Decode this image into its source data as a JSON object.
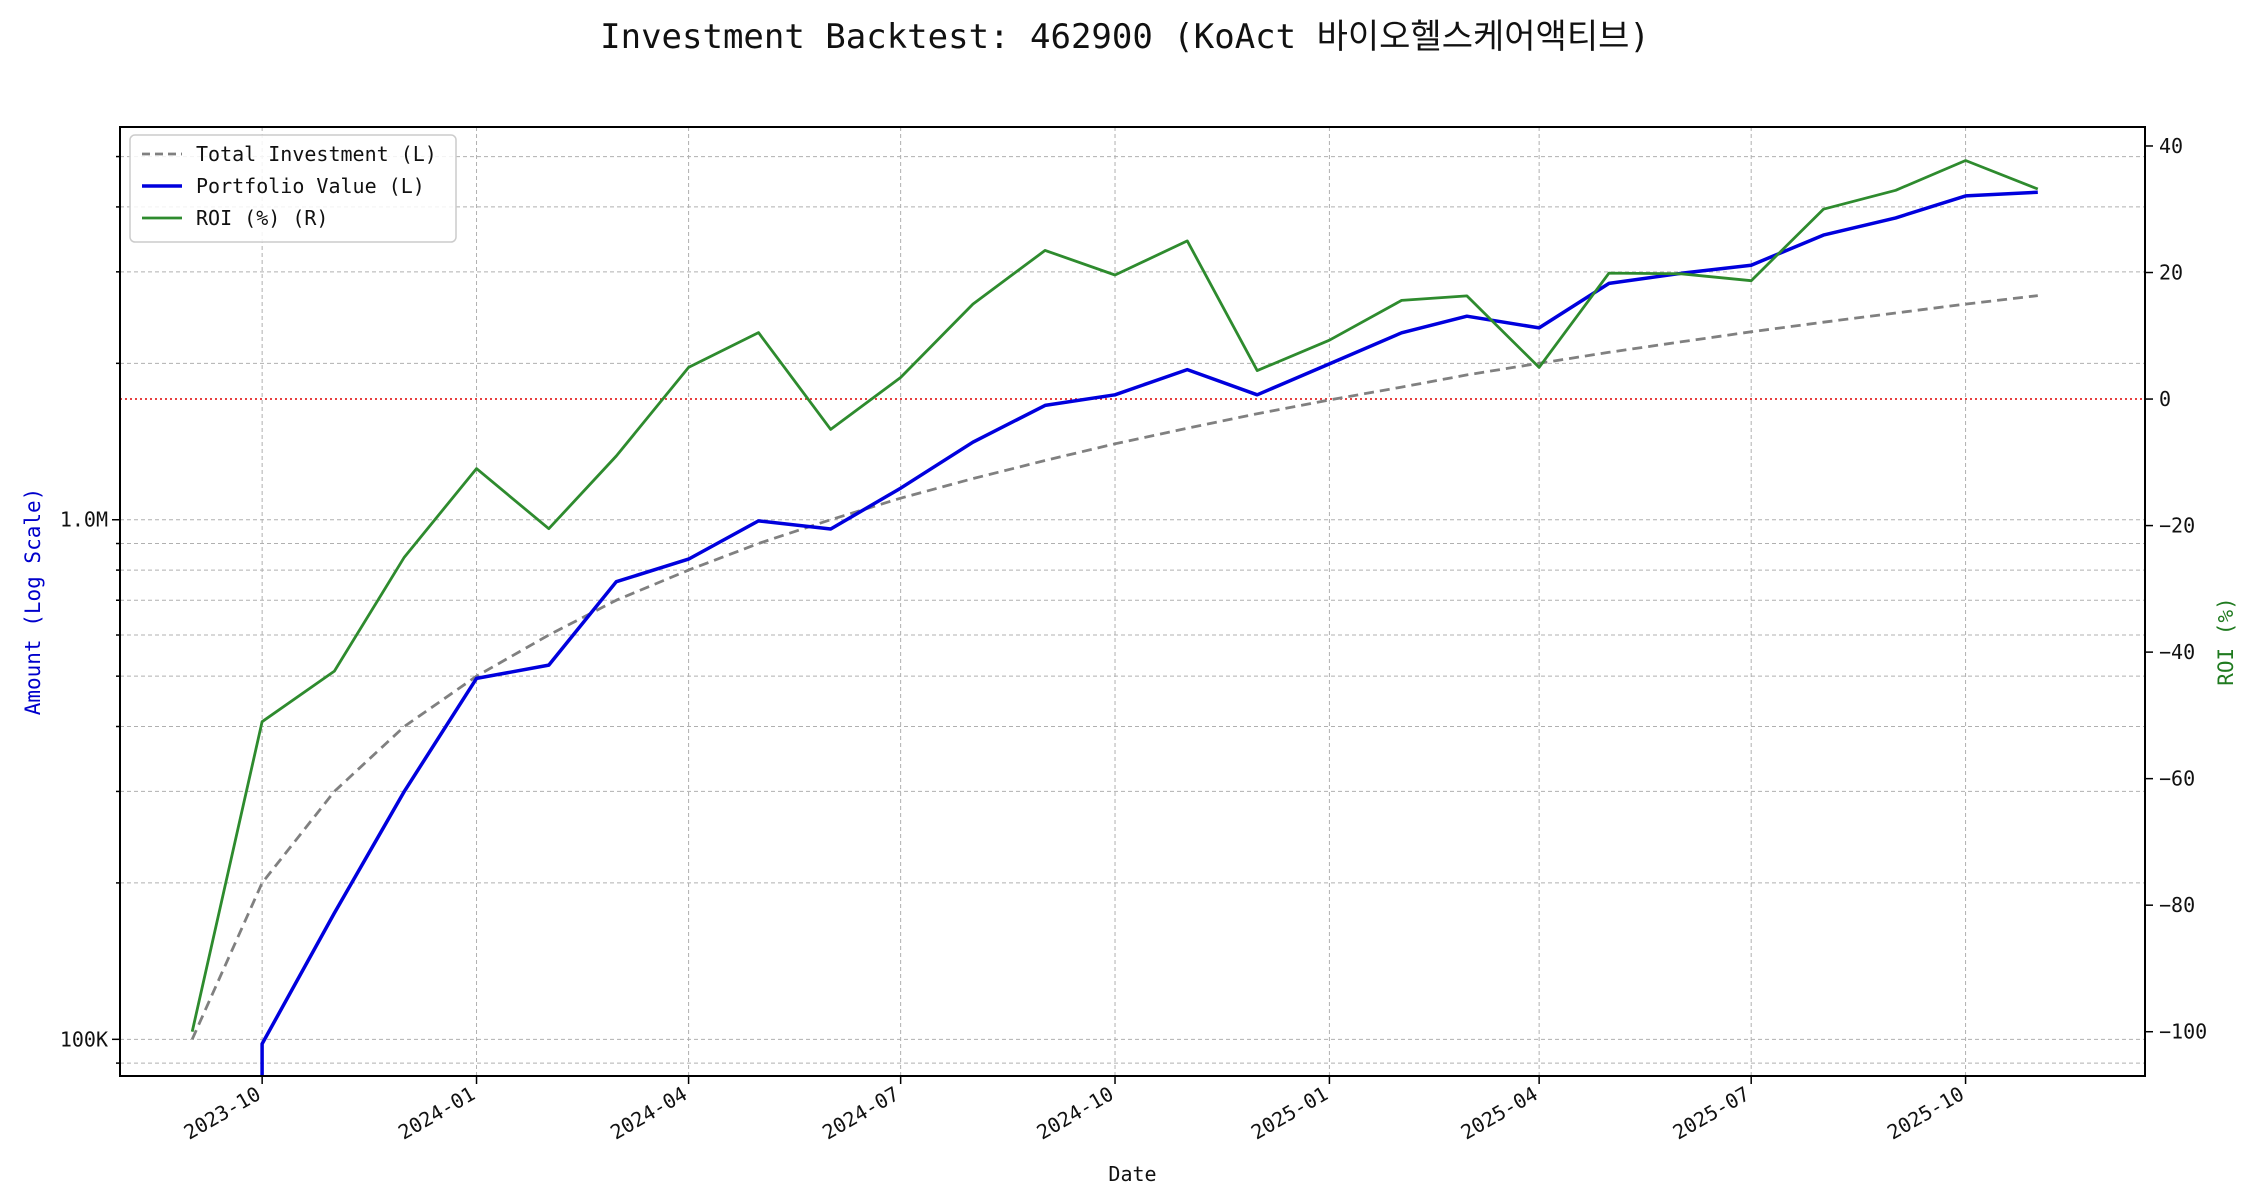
{
  "chart_data": {
    "type": "line",
    "title": "Investment Backtest: 462900 (KoAct 바이오헬스케어액티브)",
    "xlabel": "Date",
    "ylabel_left": "Amount (Log Scale)",
    "ylabel_right": "ROI (%)",
    "y_left_scale": "log",
    "y_left_range": [
      85000,
      5700000
    ],
    "y_left_tick_labels": [
      {
        "value": 100000,
        "label": "100K"
      },
      {
        "value": 1000000,
        "label": "1.0M"
      }
    ],
    "y_right_range": [
      -107,
      43
    ],
    "y_right_ticks": [
      -100,
      -80,
      -60,
      -40,
      -20,
      0,
      20,
      40
    ],
    "x_range": [
      "2023-08-01",
      "2025-12-17"
    ],
    "x_ticks": [
      "2023-10",
      "2024-01",
      "2024-04",
      "2024-07",
      "2024-10",
      "2025-01",
      "2025-04",
      "2025-07",
      "2025-10"
    ],
    "x_tick_dates": [
      "2023-10-01",
      "2024-01-01",
      "2024-04-01",
      "2024-07-01",
      "2024-10-01",
      "2025-01-01",
      "2025-04-01",
      "2025-07-01",
      "2025-10-01"
    ],
    "grid": true,
    "legend_position": "top-left",
    "zero_line": {
      "axis": "right",
      "value": 0,
      "color": "#dd0000",
      "style": "dotted"
    },
    "series": [
      {
        "name": "Total Investment (L)",
        "axis": "left",
        "color": "#808080",
        "style": "dashed",
        "x": [
          "2023-09-01",
          "2023-10-01",
          "2023-11-01",
          "2023-12-01",
          "2024-01-01",
          "2024-02-01",
          "2024-03-01",
          "2024-04-01",
          "2024-05-01",
          "2024-06-01",
          "2024-07-01",
          "2024-08-01",
          "2024-09-01",
          "2024-10-01",
          "2024-11-01",
          "2024-12-01",
          "2025-01-01",
          "2025-02-01",
          "2025-03-01",
          "2025-04-01",
          "2025-05-01",
          "2025-06-01",
          "2025-07-01",
          "2025-08-01",
          "2025-09-01",
          "2025-10-01",
          "2025-11-01"
        ],
        "values": [
          100000,
          200000,
          300000,
          400000,
          500000,
          600000,
          700000,
          800000,
          900000,
          1000000,
          1100000,
          1200000,
          1300000,
          1400000,
          1500000,
          1600000,
          1700000,
          1800000,
          1900000,
          2000000,
          2100000,
          2200000,
          2300000,
          2400000,
          2500000,
          2600000,
          2700000
        ]
      },
      {
        "name": "Portfolio Value (L)",
        "axis": "left",
        "color": "#0000dd",
        "style": "solid",
        "x": [
          "2023-10-01",
          "2023-10-01",
          "2023-11-01",
          "2023-12-01",
          "2024-01-01",
          "2024-02-01",
          "2024-03-01",
          "2024-04-01",
          "2024-05-01",
          "2024-06-01",
          "2024-07-01",
          "2024-08-01",
          "2024-09-01",
          "2024-10-01",
          "2024-11-01",
          "2024-12-01",
          "2025-01-01",
          "2025-02-01",
          "2025-03-01",
          "2025-04-01",
          "2025-05-01",
          "2025-06-01",
          "2025-07-01",
          "2025-08-01",
          "2025-09-01",
          "2025-10-01",
          "2025-11-01"
        ],
        "values": [
          85000,
          98000,
          175000,
          300000,
          495000,
          525000,
          760000,
          840000,
          995000,
          960000,
          1150000,
          1410000,
          1660000,
          1740000,
          1945000,
          1740000,
          1995000,
          2290000,
          2465000,
          2340000,
          2850000,
          2980000,
          3090000,
          3530000,
          3810000,
          4200000,
          4270000
        ]
      },
      {
        "name": "ROI (%) (R)",
        "axis": "right",
        "color": "#2e8b2e",
        "style": "solid",
        "x": [
          "2023-09-01",
          "2023-10-01",
          "2023-11-01",
          "2023-12-01",
          "2024-01-01",
          "2024-02-01",
          "2024-03-01",
          "2024-04-01",
          "2024-05-01",
          "2024-06-01",
          "2024-07-01",
          "2024-08-01",
          "2024-09-01",
          "2024-10-01",
          "2024-11-01",
          "2024-12-01",
          "2025-01-01",
          "2025-02-01",
          "2025-03-01",
          "2025-04-01",
          "2025-05-01",
          "2025-06-01",
          "2025-07-01",
          "2025-08-01",
          "2025-09-01",
          "2025-10-01",
          "2025-11-01"
        ],
        "values": [
          -100,
          -51,
          -43,
          -25,
          -11,
          -20.5,
          -9,
          5,
          10.5,
          -4.8,
          3.4,
          15,
          23.5,
          19.6,
          25,
          4.5,
          9.3,
          15.6,
          16.3,
          5,
          19.9,
          19.8,
          18.7,
          30,
          33,
          37.7,
          33.2
        ]
      }
    ]
  }
}
